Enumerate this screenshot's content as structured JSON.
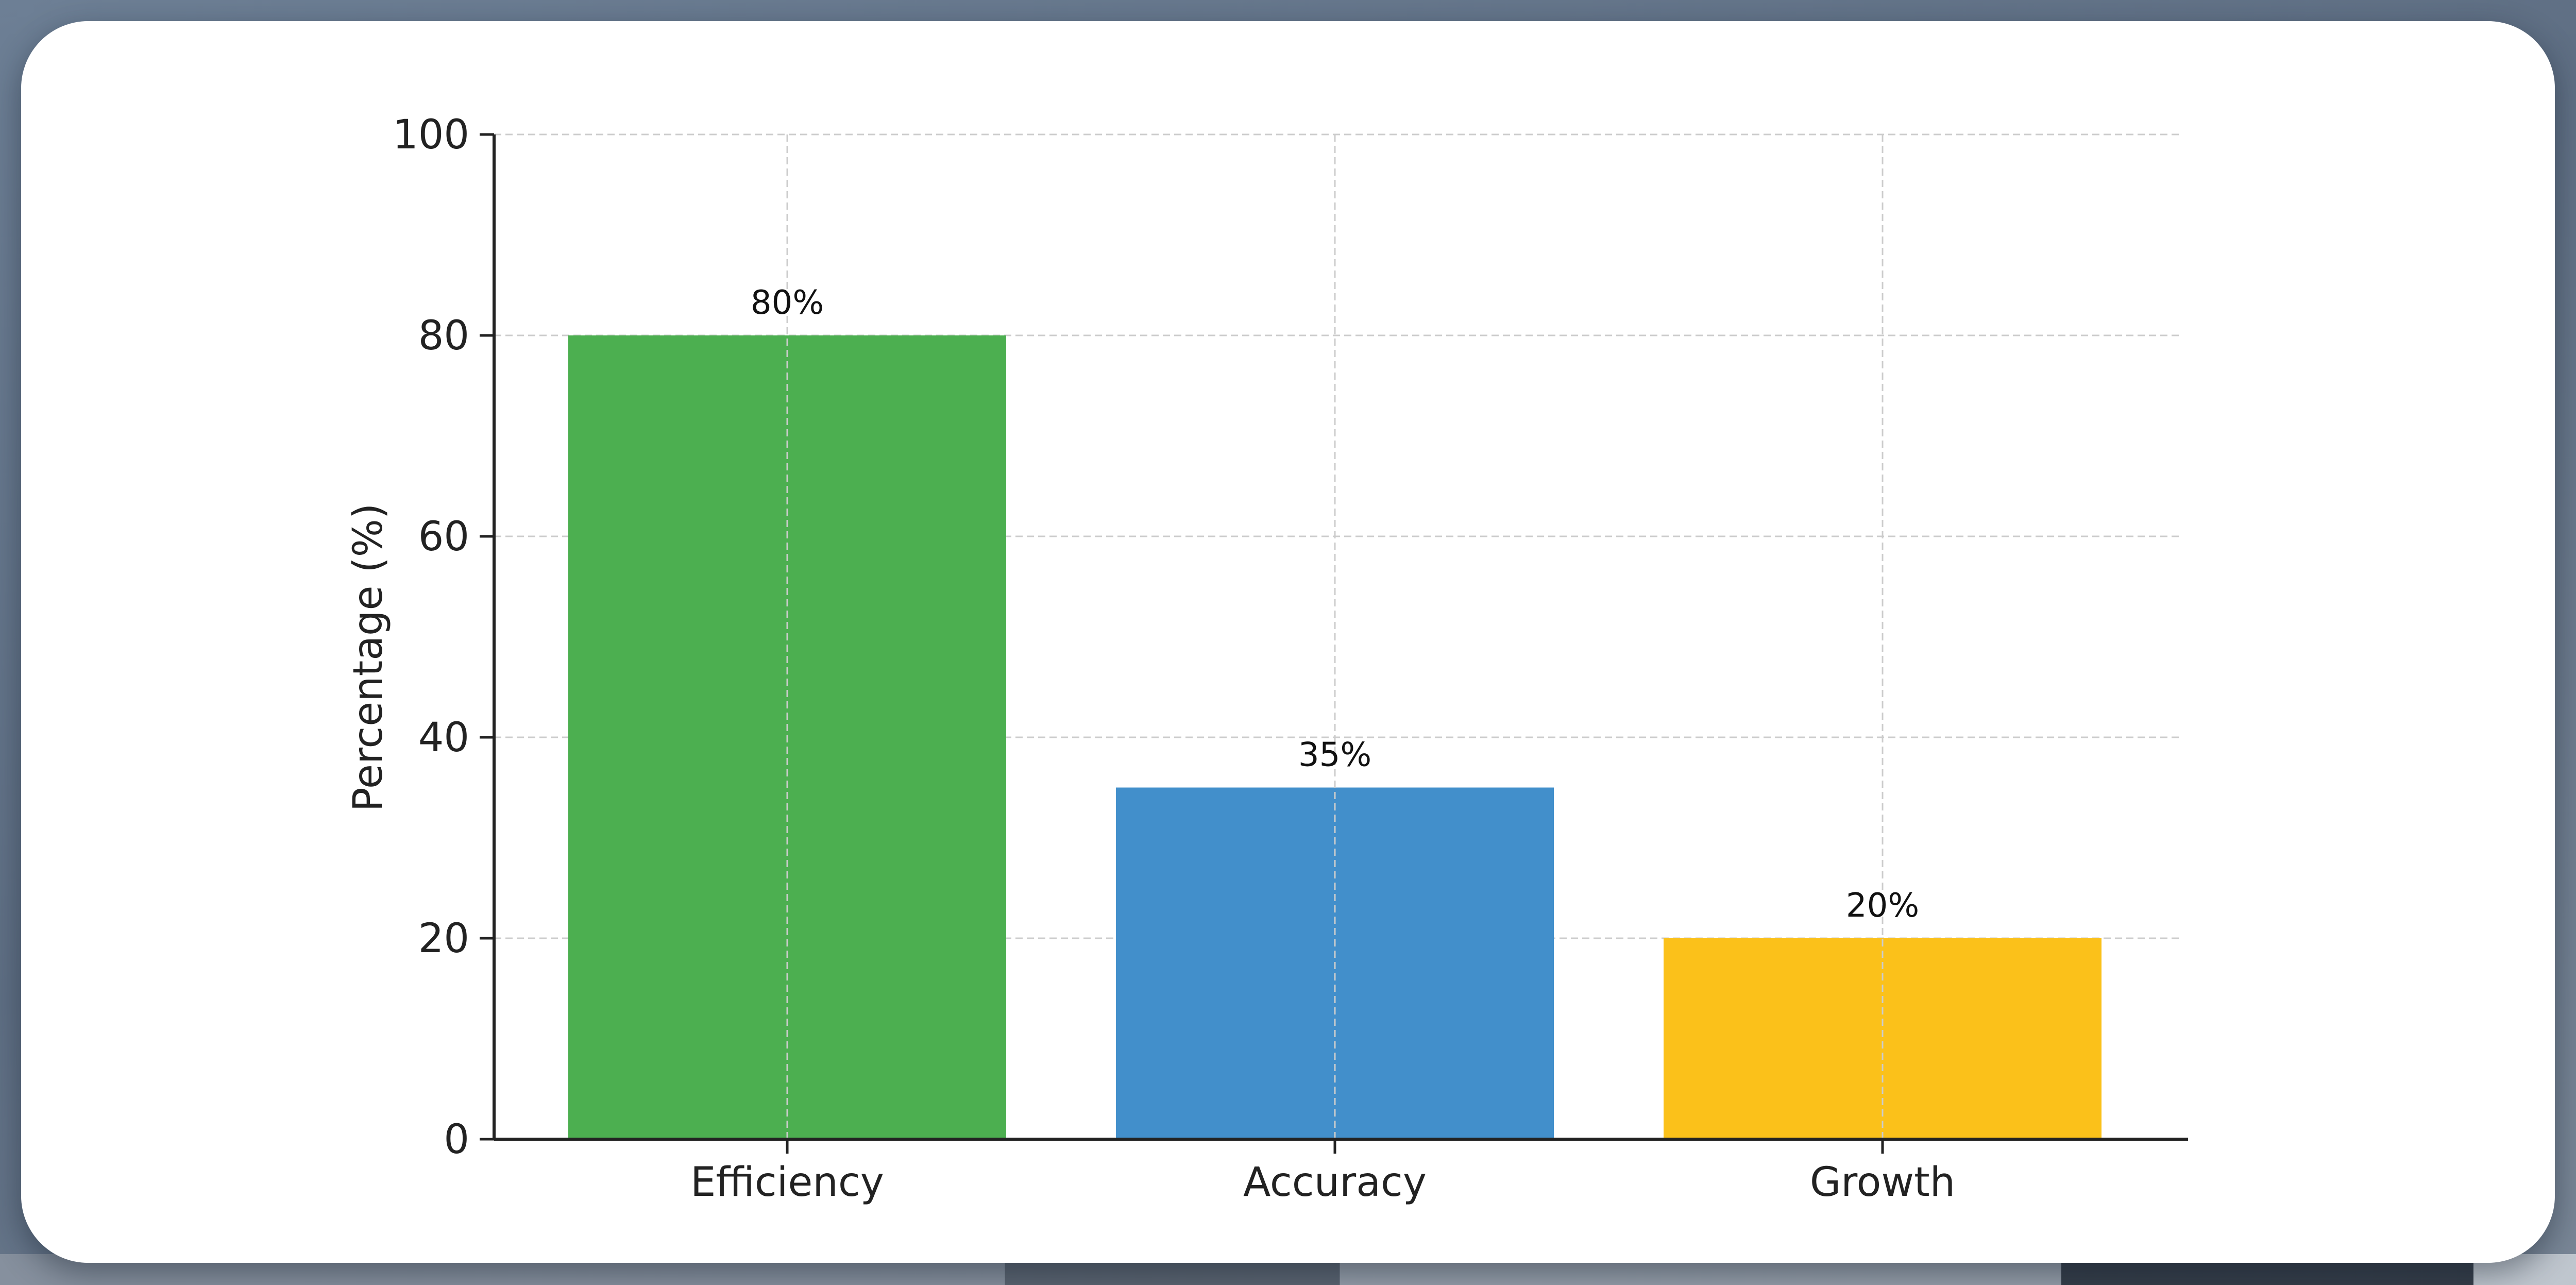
{
  "chart_data": {
    "type": "bar",
    "title": "",
    "xlabel": "",
    "ylabel": "Percentage (%)",
    "categories": [
      "Efficiency",
      "Accuracy",
      "Growth"
    ],
    "values": [
      80,
      35,
      20
    ],
    "value_labels": [
      "80%",
      "35%",
      "20%"
    ],
    "colors": [
      "#4caf50",
      "#428fcb",
      "#fbc11a"
    ],
    "ylim": [
      0,
      100
    ],
    "yticks": [
      0,
      20,
      40,
      60,
      80,
      100
    ],
    "grid": true,
    "legend": "none"
  }
}
